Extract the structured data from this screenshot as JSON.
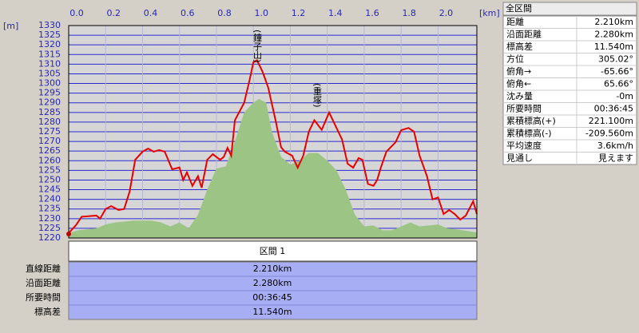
{
  "chart_data": {
    "type": "line",
    "xlabel": "[km]",
    "ylabel": "[m]",
    "xlim": [
      0,
      2.21
    ],
    "ylim": [
      1220,
      1330
    ],
    "xticks": [
      {
        "value": 0,
        "label": "0.0"
      },
      0.2,
      0.4,
      0.6,
      0.8,
      {
        "value": 1,
        "label": "1.0"
      },
      1.2,
      1.4,
      1.6,
      1.8,
      {
        "value": 2,
        "label": "2.0"
      }
    ],
    "yticks": [
      1220,
      1225,
      1230,
      1235,
      1240,
      1245,
      1250,
      1255,
      1260,
      1265,
      1270,
      1275,
      1280,
      1285,
      1290,
      1295,
      1300,
      1305,
      1310,
      1315,
      1320,
      1325,
      1330
    ],
    "grid": true,
    "annotations": [
      "(鐘子山)",
      "(重塚)"
    ],
    "series": [
      {
        "color": "#9cc484",
        "fill": true,
        "x": [
          0,
          0.05,
          0.15,
          0.2,
          0.25,
          0.3,
          0.35,
          0.45,
          0.5,
          0.55,
          0.6,
          0.65,
          0.7,
          0.75,
          0.8,
          0.85,
          0.9,
          0.95,
          1.0,
          1.03,
          1.07,
          1.1,
          1.15,
          1.2,
          1.25,
          1.3,
          1.35,
          1.4,
          1.45,
          1.5,
          1.55,
          1.6,
          1.65,
          1.7,
          1.75,
          1.8,
          1.85,
          1.9,
          2.0,
          2.05,
          2.1,
          2.2,
          2.21
        ],
        "values": [
          1222.5,
          1224,
          1225,
          1227,
          1228,
          1228.5,
          1229,
          1229,
          1228,
          1226,
          1228,
          1225,
          1232,
          1245,
          1256,
          1257,
          1270,
          1285,
          1290,
          1292,
          1290,
          1275,
          1262,
          1258,
          1260,
          1264,
          1264,
          1260,
          1255,
          1245,
          1232,
          1226,
          1226.5,
          1224,
          1224,
          1226,
          1228,
          1226,
          1227,
          1225,
          1224.5,
          1223,
          1223
        ]
      },
      {
        "color": "#e80000",
        "x": [
          0,
          0.04,
          0.07,
          0.15,
          0.17,
          0.2,
          0.23,
          0.27,
          0.3,
          0.33,
          0.36,
          0.4,
          0.43,
          0.46,
          0.49,
          0.52,
          0.56,
          0.6,
          0.62,
          0.64,
          0.67,
          0.7,
          0.72,
          0.75,
          0.78,
          0.82,
          0.84,
          0.86,
          0.88,
          0.9,
          0.95,
          0.98,
          1.0,
          1.02,
          1.05,
          1.08,
          1.12,
          1.15,
          1.17,
          1.21,
          1.24,
          1.27,
          1.3,
          1.33,
          1.37,
          1.41,
          1.44,
          1.48,
          1.51,
          1.54,
          1.57,
          1.59,
          1.62,
          1.65,
          1.67,
          1.69,
          1.72,
          1.77,
          1.8,
          1.84,
          1.87,
          1.9,
          1.94,
          1.97,
          2.0,
          2.03,
          2.06,
          2.09,
          2.12,
          2.15,
          2.19,
          2.21
        ],
        "values": [
          1222.5,
          1226.7,
          1231,
          1231.6,
          1230,
          1235,
          1236.5,
          1234.5,
          1235,
          1244,
          1260.5,
          1264.7,
          1266.3,
          1264.7,
          1265.5,
          1264.7,
          1255.6,
          1256.5,
          1250,
          1254,
          1247,
          1252,
          1246,
          1260.5,
          1263.4,
          1260.5,
          1262,
          1266.7,
          1262.6,
          1281,
          1290,
          1302,
          1311,
          1312,
          1306,
          1298,
          1281,
          1267,
          1264.7,
          1262.6,
          1256.4,
          1262.6,
          1275,
          1281,
          1276,
          1285,
          1279,
          1271,
          1258.5,
          1256.4,
          1261.4,
          1260.5,
          1248,
          1247,
          1250,
          1256.4,
          1264.7,
          1269.6,
          1275.8,
          1277,
          1275,
          1262.6,
          1252,
          1240,
          1241,
          1232.4,
          1234.5,
          1232.4,
          1229.5,
          1231.6,
          1239,
          1232.4
        ]
      }
    ]
  },
  "summary": {
    "title": "全区間",
    "rows": [
      [
        "距離",
        "2.210km"
      ],
      [
        "沿面距離",
        "2.280km"
      ],
      [
        "標高差",
        "11.540m"
      ],
      [
        "方位",
        "305.02°"
      ],
      [
        "俯角→",
        "-65.66°"
      ],
      [
        "俯角←",
        "65.66°"
      ],
      [
        "沈み量",
        "-0m"
      ],
      [
        "所要時間",
        "00:36:45"
      ],
      [
        "累積標高(+)",
        "221.100m"
      ],
      [
        "累積標高(-)",
        "-209.560m"
      ],
      [
        "平均速度",
        "3.6km/h"
      ],
      [
        "見通し",
        "見えます"
      ]
    ]
  },
  "section": {
    "title": "区間 1",
    "rows": [
      [
        "直線距離",
        "2.210km"
      ],
      [
        "沿面距離",
        "2.280km"
      ],
      [
        "所要時間",
        "00:36:45"
      ],
      [
        "標高差",
        "11.540m"
      ]
    ]
  }
}
